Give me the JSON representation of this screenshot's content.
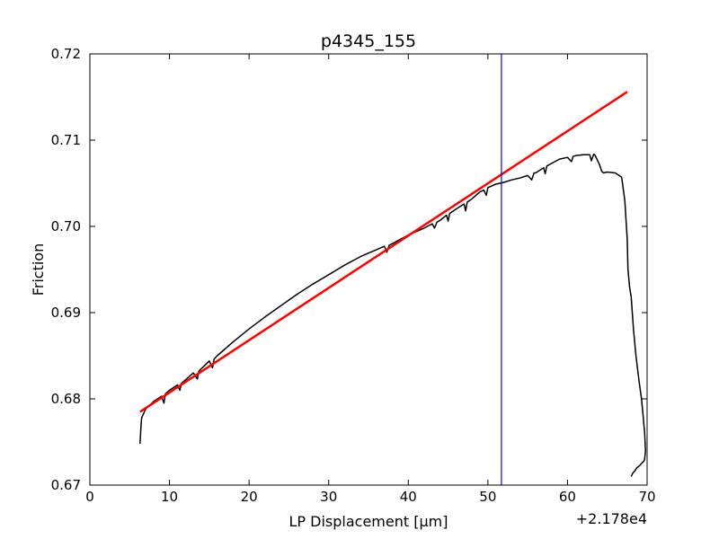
{
  "chart_data": {
    "type": "line",
    "title": "p4345_155",
    "xlabel": "LP Displacement [μm]",
    "ylabel": "Friction",
    "offset_text": "+2.178e4",
    "xlim": [
      0,
      70
    ],
    "ylim": [
      0.67,
      0.72
    ],
    "x_ticks": [
      0,
      10,
      20,
      30,
      40,
      50,
      60,
      70
    ],
    "x_tick_labels": [
      "0",
      "10",
      "20",
      "30",
      "40",
      "50",
      "60",
      "70"
    ],
    "y_ticks": [
      0.67,
      0.68,
      0.69,
      0.7,
      0.71,
      0.72
    ],
    "y_tick_labels": [
      "0.67",
      "0.68",
      "0.69",
      "0.70",
      "0.71",
      "0.72"
    ],
    "grid": false,
    "series": [
      {
        "color": "#000000",
        "x": [
          6.3,
          6.4,
          6.5,
          7.0,
          8.0,
          9.0,
          9.3,
          9.5,
          10.0,
          11.0,
          11.3,
          11.5,
          12.0,
          13.0,
          13.5,
          13.7,
          14.0,
          15.0,
          15.4,
          15.6,
          16.0,
          18.0,
          20.0,
          22.0,
          24.0,
          26.0,
          28.0,
          30.0,
          32.0,
          34.0,
          36.0,
          37.0,
          37.3,
          37.6,
          38.0,
          40.0,
          42.0,
          43.0,
          43.3,
          43.6,
          44.0,
          44.8,
          45.0,
          45.2,
          46.0,
          47.0,
          47.2,
          47.4,
          48.0,
          49.0,
          49.5,
          49.8,
          50.0,
          51.0,
          52.0,
          53.0,
          54.0,
          55.0,
          55.5,
          55.8,
          56.0,
          57.0,
          57.2,
          57.4,
          58.0,
          59.0,
          60.0,
          60.5,
          60.7,
          61.0,
          62.0,
          62.8,
          63.0,
          63.3,
          63.5,
          64.0,
          64.3,
          64.5,
          65.0,
          66.0,
          66.8,
          67.2,
          67.5,
          67.6,
          67.8,
          68.0,
          68.3,
          68.6,
          69.0,
          69.3,
          69.5,
          69.7,
          69.8,
          69.7,
          69.6,
          69.3,
          69.0,
          68.7,
          68.5,
          68.2,
          68.0
        ],
        "y": [
          0.6748,
          0.6765,
          0.6778,
          0.6788,
          0.6797,
          0.6803,
          0.6795,
          0.6806,
          0.681,
          0.6816,
          0.681,
          0.6818,
          0.6822,
          0.683,
          0.6823,
          0.6832,
          0.6835,
          0.6844,
          0.6836,
          0.6846,
          0.685,
          0.6866,
          0.6881,
          0.6895,
          0.6908,
          0.6921,
          0.6933,
          0.6944,
          0.6955,
          0.6965,
          0.6973,
          0.6977,
          0.697,
          0.6978,
          0.698,
          0.699,
          0.6998,
          0.7003,
          0.6998,
          0.7005,
          0.7007,
          0.7013,
          0.7006,
          0.7015,
          0.702,
          0.7026,
          0.7018,
          0.7028,
          0.7032,
          0.704,
          0.7042,
          0.7036,
          0.7045,
          0.7049,
          0.7051,
          0.7054,
          0.7056,
          0.7059,
          0.7054,
          0.7062,
          0.7062,
          0.7068,
          0.7061,
          0.707,
          0.7073,
          0.7078,
          0.708,
          0.7075,
          0.7081,
          0.7082,
          0.7083,
          0.7083,
          0.7076,
          0.7084,
          0.7082,
          0.7072,
          0.7064,
          0.7062,
          0.7063,
          0.7062,
          0.7057,
          0.703,
          0.6985,
          0.695,
          0.693,
          0.6918,
          0.688,
          0.685,
          0.682,
          0.68,
          0.678,
          0.676,
          0.674,
          0.673,
          0.6728,
          0.6725,
          0.6722,
          0.672,
          0.6717,
          0.6714,
          0.671
        ]
      },
      {
        "color": "#ff0000",
        "x": [
          6.3,
          67.5
        ],
        "y": [
          0.6785,
          0.7156
        ]
      }
    ],
    "vlines": [
      {
        "x": 51.7,
        "color": "#0000ff"
      }
    ]
  }
}
